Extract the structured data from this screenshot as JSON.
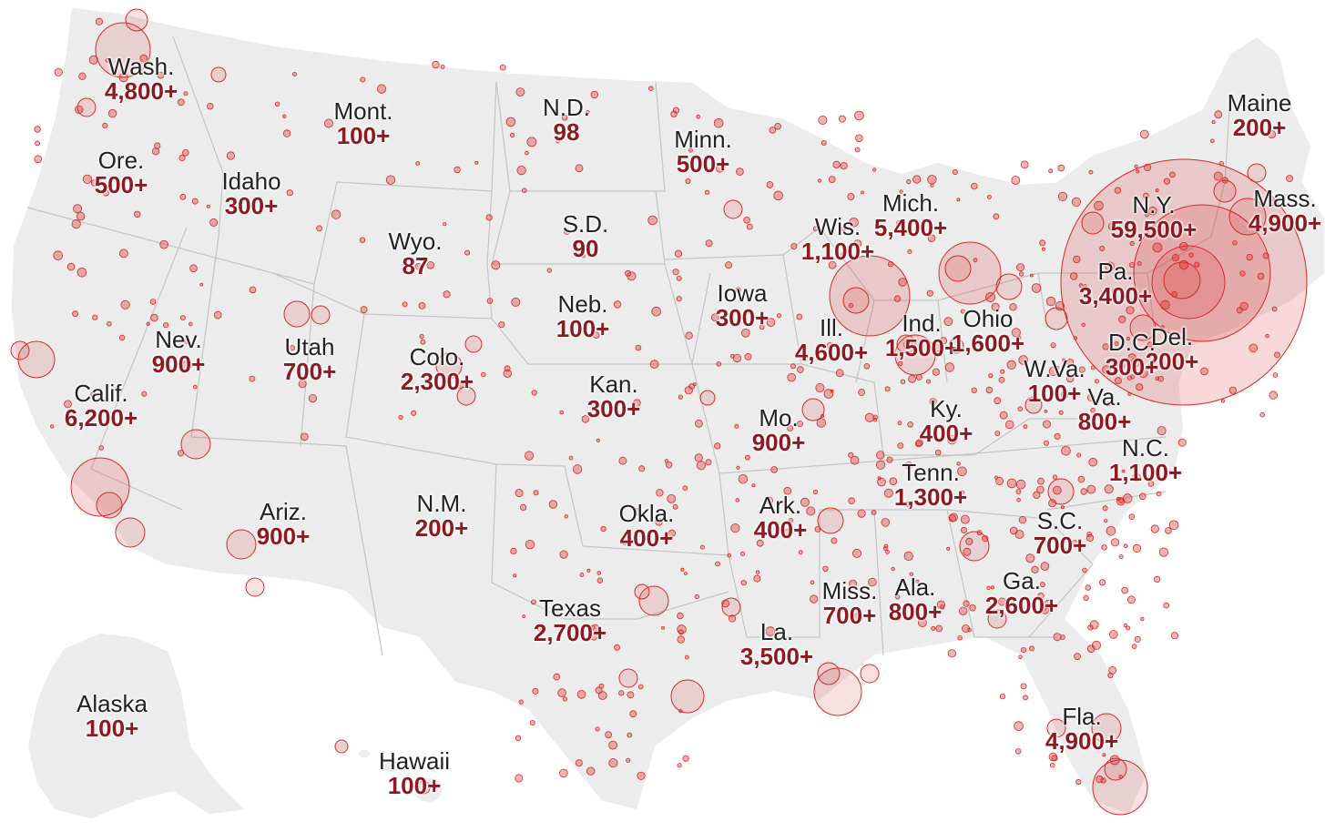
{
  "map": {
    "bubble_color": "#d62a2a",
    "land_color": "#ececec",
    "count_color": "#8b1a22",
    "states": [
      {
        "name": "Wash.",
        "count": "4,800+"
      },
      {
        "name": "Ore.",
        "count": "500+"
      },
      {
        "name": "Idaho",
        "count": "300+"
      },
      {
        "name": "Mont.",
        "count": "100+"
      },
      {
        "name": "N.D.",
        "count": "98"
      },
      {
        "name": "Minn.",
        "count": "500+"
      },
      {
        "name": "Maine",
        "count": "200+"
      },
      {
        "name": "Mass.",
        "count": "4,900+"
      },
      {
        "name": "N.Y.",
        "count": "59,500+"
      },
      {
        "name": "Mich.",
        "count": "5,400+"
      },
      {
        "name": "Wis.",
        "count": "1,100+"
      },
      {
        "name": "S.D.",
        "count": "90"
      },
      {
        "name": "Wyo.",
        "count": "87"
      },
      {
        "name": "Neb.",
        "count": "100+"
      },
      {
        "name": "Iowa",
        "count": "300+"
      },
      {
        "name": "Ill.",
        "count": "4,600+"
      },
      {
        "name": "Ind.",
        "count": "1,500+"
      },
      {
        "name": "Ohio",
        "count": "1,600+"
      },
      {
        "name": "Pa.",
        "count": "3,400+"
      },
      {
        "name": "Del.",
        "count": "200+"
      },
      {
        "name": "D.C.",
        "count": "300+"
      },
      {
        "name": "W.Va.",
        "count": "100+"
      },
      {
        "name": "Va.",
        "count": "800+"
      },
      {
        "name": "Nev.",
        "count": "900+"
      },
      {
        "name": "Utah",
        "count": "700+"
      },
      {
        "name": "Colo.",
        "count": "2,300+"
      },
      {
        "name": "Kan.",
        "count": "300+"
      },
      {
        "name": "Mo.",
        "count": "900+"
      },
      {
        "name": "Ky.",
        "count": "400+"
      },
      {
        "name": "Calif.",
        "count": "6,200+"
      },
      {
        "name": "N.C.",
        "count": "1,100+"
      },
      {
        "name": "Tenn.",
        "count": "1,300+"
      },
      {
        "name": "Ariz.",
        "count": "900+"
      },
      {
        "name": "N.M.",
        "count": "200+"
      },
      {
        "name": "Okla.",
        "count": "400+"
      },
      {
        "name": "Ark.",
        "count": "400+"
      },
      {
        "name": "S.C.",
        "count": "700+"
      },
      {
        "name": "Texas",
        "count": "2,700+"
      },
      {
        "name": "Miss.",
        "count": "700+"
      },
      {
        "name": "Ala.",
        "count": "800+"
      },
      {
        "name": "Ga.",
        "count": "2,600+"
      },
      {
        "name": "La.",
        "count": "3,500+"
      },
      {
        "name": "Fla.",
        "count": "4,900+"
      },
      {
        "name": "Alaska",
        "count": "100+"
      },
      {
        "name": "Hawaii",
        "count": "100+"
      }
    ]
  }
}
